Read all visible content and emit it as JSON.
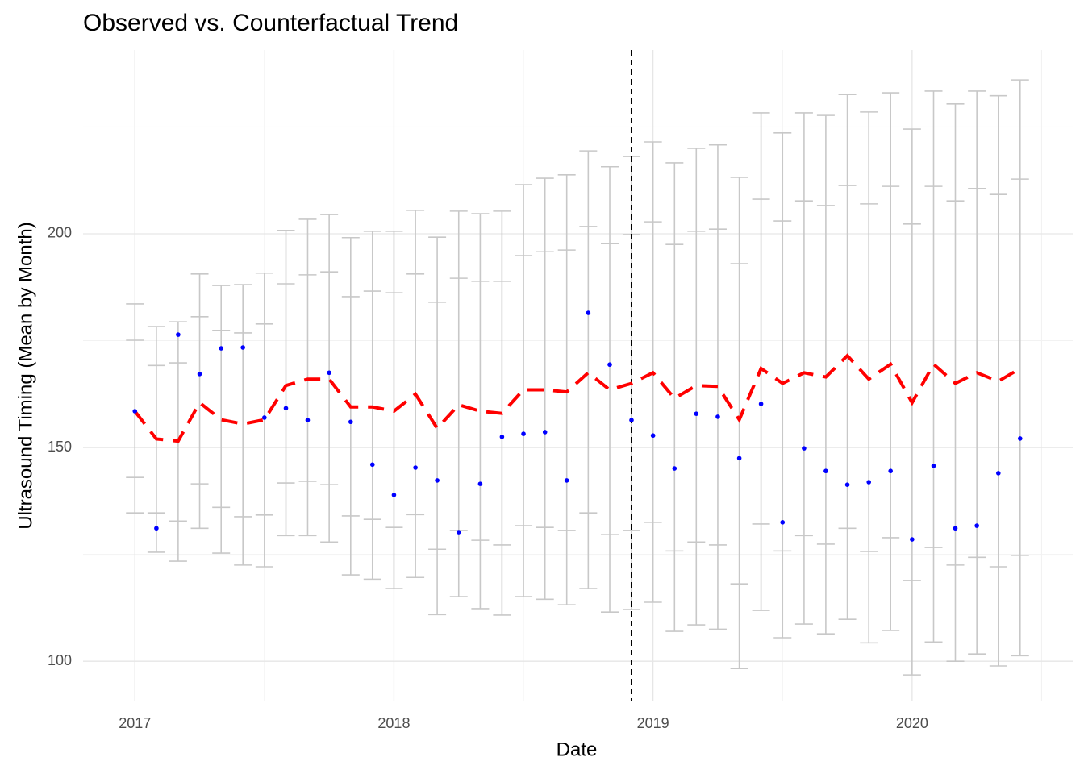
{
  "chart_data": {
    "type": "counterfactual",
    "title": "Observed vs. Counterfactual Trend",
    "x_label": "Date",
    "y_label": "Ultrasound Timing (Mean by Month)",
    "xlim": [
      2016.8,
      2020.62
    ],
    "xticks": [
      2017,
      2018,
      2019,
      2020
    ],
    "x_minor_ticks": [
      2017.5,
      2018.5,
      2019.5,
      2020.5
    ],
    "ylim": [
      90.6,
      243
    ],
    "yticks": [
      100,
      150,
      200
    ],
    "y_minor_ticks": [
      125,
      175,
      225
    ],
    "grid": true,
    "intervention_x": 2018.917,
    "observed_color": "#0000ff",
    "counterfactual_color": "#ff0000",
    "interval_color": "#c8c8c8",
    "x": [
      2017,
      2017.083,
      2017.167,
      2017.25,
      2017.333,
      2017.417,
      2017.5,
      2017.583,
      2017.667,
      2017.75,
      2017.833,
      2017.917,
      2018,
      2018.083,
      2018.167,
      2018.25,
      2018.333,
      2018.417,
      2018.5,
      2018.583,
      2018.667,
      2018.75,
      2018.833,
      2018.917,
      2019,
      2019.083,
      2019.167,
      2019.25,
      2019.333,
      2019.417,
      2019.5,
      2019.583,
      2019.667,
      2019.75,
      2019.833,
      2019.917,
      2020,
      2020.083,
      2020.167,
      2020.25,
      2020.333,
      2020.417
    ],
    "observed": [
      158.5,
      131.1,
      176.4,
      167.2,
      173.2,
      173.4,
      157,
      159.2,
      156.4,
      167.5,
      156,
      146,
      138.9,
      145.3,
      142.3,
      130.2,
      141.5,
      152.5,
      153.2,
      153.6,
      142.3,
      181.5,
      169.4,
      156.4,
      152.8,
      145.1,
      157.9,
      157.2,
      147.5,
      160.2,
      132.5,
      149.8,
      144.5,
      141.3,
      141.9,
      144.5,
      128.5,
      145.7,
      131.1,
      131.7,
      144,
      152.1
    ],
    "counterfactual": [
      158.5,
      152,
      151.5,
      160.5,
      156.5,
      155.5,
      156.5,
      164.5,
      166,
      166,
      159.5,
      159.5,
      158.5,
      162.5,
      154.5,
      160,
      158.5,
      158,
      163.5,
      163.5,
      163,
      167.5,
      163.5,
      165,
      167.5,
      161.5,
      164.5,
      164.3,
      156.5,
      168.5,
      165,
      167.5,
      166.5,
      171.5,
      166,
      169.5,
      160.5,
      169.5,
      165,
      167.5,
      165.5,
      168.5
    ],
    "upper_outer": [
      183.6,
      178.3,
      179.4,
      190.6,
      187.9,
      188.1,
      190.8,
      200.8,
      203.4,
      204.5,
      199.1,
      200.6,
      200.6,
      205.5,
      199.2,
      205.3,
      204.7,
      205.3,
      211.5,
      213,
      213.8,
      219.4,
      215.7,
      218.1,
      221.5,
      216.6,
      220,
      220.8,
      213.2,
      228.3,
      223.6,
      228.3,
      227.7,
      232.6,
      228.5,
      233,
      224.5,
      233.4,
      230.4,
      233.4,
      232.3,
      236
    ],
    "upper_inner": [
      175.1,
      169.2,
      169.8,
      180.6,
      177.4,
      176.8,
      178.9,
      188.3,
      190.4,
      191.1,
      185.3,
      186.6,
      186.2,
      190.6,
      184,
      189.6,
      188.9,
      188.9,
      194.9,
      195.8,
      196.2,
      201.7,
      197.7,
      199.8,
      202.8,
      197.5,
      200.6,
      201.1,
      193,
      208.1,
      203,
      207.7,
      206.6,
      211.3,
      207,
      211.1,
      202.3,
      211.1,
      207.7,
      210.6,
      209.2,
      212.8
    ],
    "lower_inner": [
      143,
      134.7,
      132.8,
      141.5,
      136,
      133.8,
      134.2,
      141.7,
      142.1,
      141.3,
      134,
      133.2,
      131.3,
      134.3,
      126.2,
      130.6,
      128.3,
      127.2,
      131.7,
      131.3,
      130.6,
      134.7,
      129.6,
      130.6,
      132.5,
      125.8,
      127.9,
      127.2,
      118.1,
      132.1,
      125.8,
      129.4,
      127.4,
      131.1,
      125.7,
      128.9,
      118.9,
      126.6,
      122.5,
      124.3,
      122.1,
      124.7
    ],
    "lower_outer": [
      134.7,
      125.5,
      123.4,
      131.1,
      125.3,
      122.5,
      122.1,
      129.4,
      129.4,
      127.9,
      120.2,
      119.2,
      117,
      119.6,
      110.9,
      115.1,
      112.3,
      110.8,
      115.1,
      114.5,
      113.2,
      117,
      111.5,
      112.1,
      113.8,
      107,
      108.5,
      107.5,
      98.3,
      111.9,
      105.5,
      108.7,
      106.4,
      109.8,
      104.3,
      107.2,
      96.8,
      104.5,
      100,
      101.7,
      98.9,
      101.3
    ]
  }
}
